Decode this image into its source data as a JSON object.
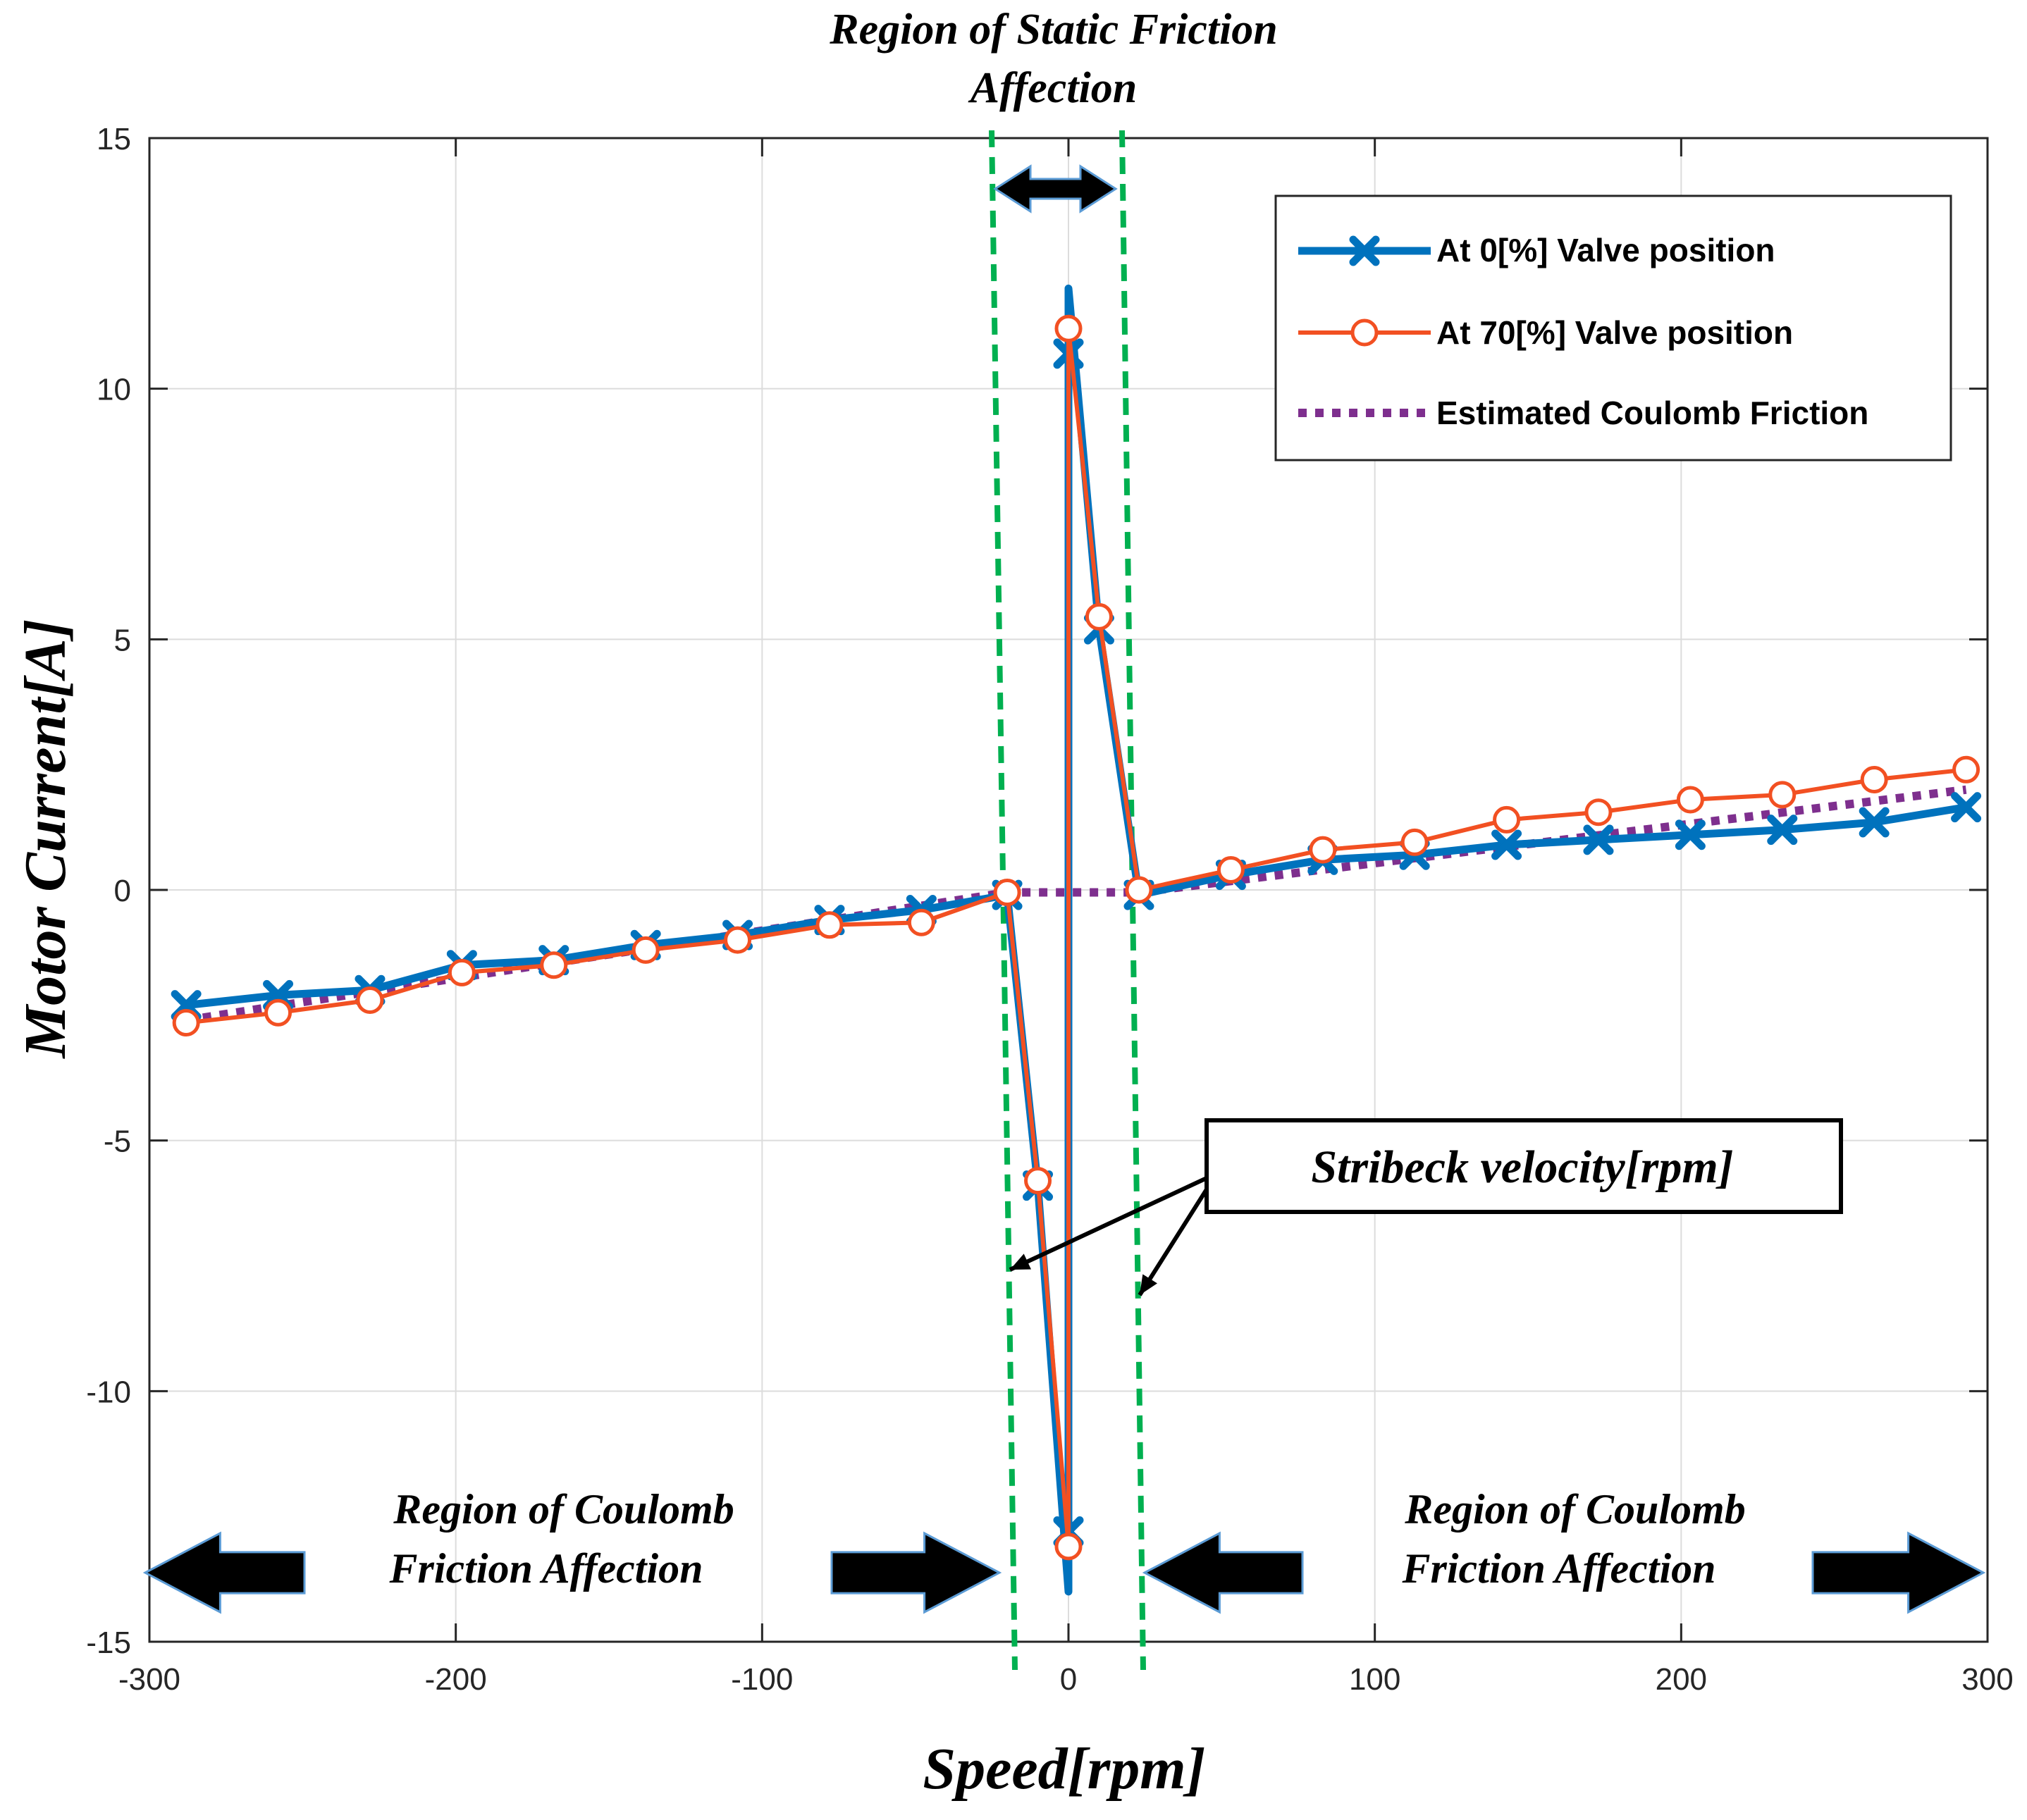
{
  "chart_data": {
    "type": "line",
    "title": "",
    "xlabel": "Speed[rpm]",
    "ylabel": "Motor Current[A]",
    "xlim": [
      -300,
      300
    ],
    "ylim": [
      -15,
      15
    ],
    "xticks": [
      -300,
      -200,
      -100,
      0,
      100,
      200,
      300
    ],
    "yticks": [
      -15,
      -10,
      -5,
      0,
      5,
      10,
      15
    ],
    "xtick_labels": [
      "-300",
      "-200",
      "-100",
      "0",
      "100",
      "200",
      "300"
    ],
    "ytick_labels": [
      "-15",
      "-10",
      "-5",
      "0",
      "5",
      "10",
      "15"
    ],
    "grid": true,
    "legend_position": "top-right",
    "series": [
      {
        "name": "At 0[%] Valve position",
        "color": "#0072BD",
        "marker": "x",
        "x": [
          -288,
          -258,
          -228,
          -198,
          -168,
          -138,
          -108,
          -78,
          -48,
          -20,
          -10,
          0,
          0,
          10,
          23,
          53,
          83,
          113,
          143,
          173,
          203,
          233,
          263,
          293
        ],
        "y": [
          -2.3,
          -2.1,
          -2.0,
          -1.5,
          -1.4,
          -1.1,
          -0.9,
          -0.6,
          -0.4,
          -0.1,
          -5.9,
          -14.0,
          12.0,
          5.2,
          -0.1,
          0.3,
          0.6,
          0.7,
          0.9,
          1.0,
          1.1,
          1.2,
          1.35,
          1.65
        ],
        "marker_index": [
          0,
          1,
          2,
          3,
          4,
          5,
          6,
          7,
          8,
          9,
          10,
          13,
          14,
          15,
          16,
          17,
          18,
          19,
          20,
          21,
          22,
          23
        ],
        "extra_markers": [
          {
            "x": 0,
            "y": -12.8
          },
          {
            "x": 0,
            "y": 10.7
          }
        ]
      },
      {
        "name": "At 70[%] Valve position",
        "color": "#F25022",
        "marker": "o",
        "x": [
          -288,
          -258,
          -228,
          -198,
          -168,
          -138,
          -108,
          -78,
          -48,
          -20,
          -10,
          0,
          0,
          10,
          23,
          53,
          83,
          113,
          143,
          173,
          203,
          233,
          263,
          293
        ],
        "y": [
          -2.65,
          -2.45,
          -2.2,
          -1.65,
          -1.5,
          -1.2,
          -1.0,
          -0.7,
          -0.65,
          -0.05,
          -5.8,
          -13.1,
          11.2,
          5.45,
          0.0,
          0.4,
          0.8,
          0.95,
          1.4,
          1.55,
          1.8,
          1.9,
          2.2,
          2.4
        ]
      },
      {
        "name": "Estimated Coulomb Friction",
        "color": "#7E2F8E",
        "dash": "dotted",
        "x": [
          -288,
          -20,
          23,
          293
        ],
        "y": [
          -2.6,
          -0.05,
          -0.05,
          2.0
        ]
      }
    ],
    "annotations": {
      "static_region_title_1": "Region of Static Friction",
      "static_region_title_2": "Affection",
      "stribeck_label": "Stribeck velocity[rpm]",
      "coulomb_left_1": "Region of Coulomb",
      "coulomb_left_2": "Friction Affection",
      "coulomb_right_1": "Region of Coulomb",
      "coulomb_right_2": "Friction Affection",
      "region_line_color": "#00B050",
      "arrow_color": "#000000",
      "arrow_border_color": "#5B9BD5"
    }
  }
}
